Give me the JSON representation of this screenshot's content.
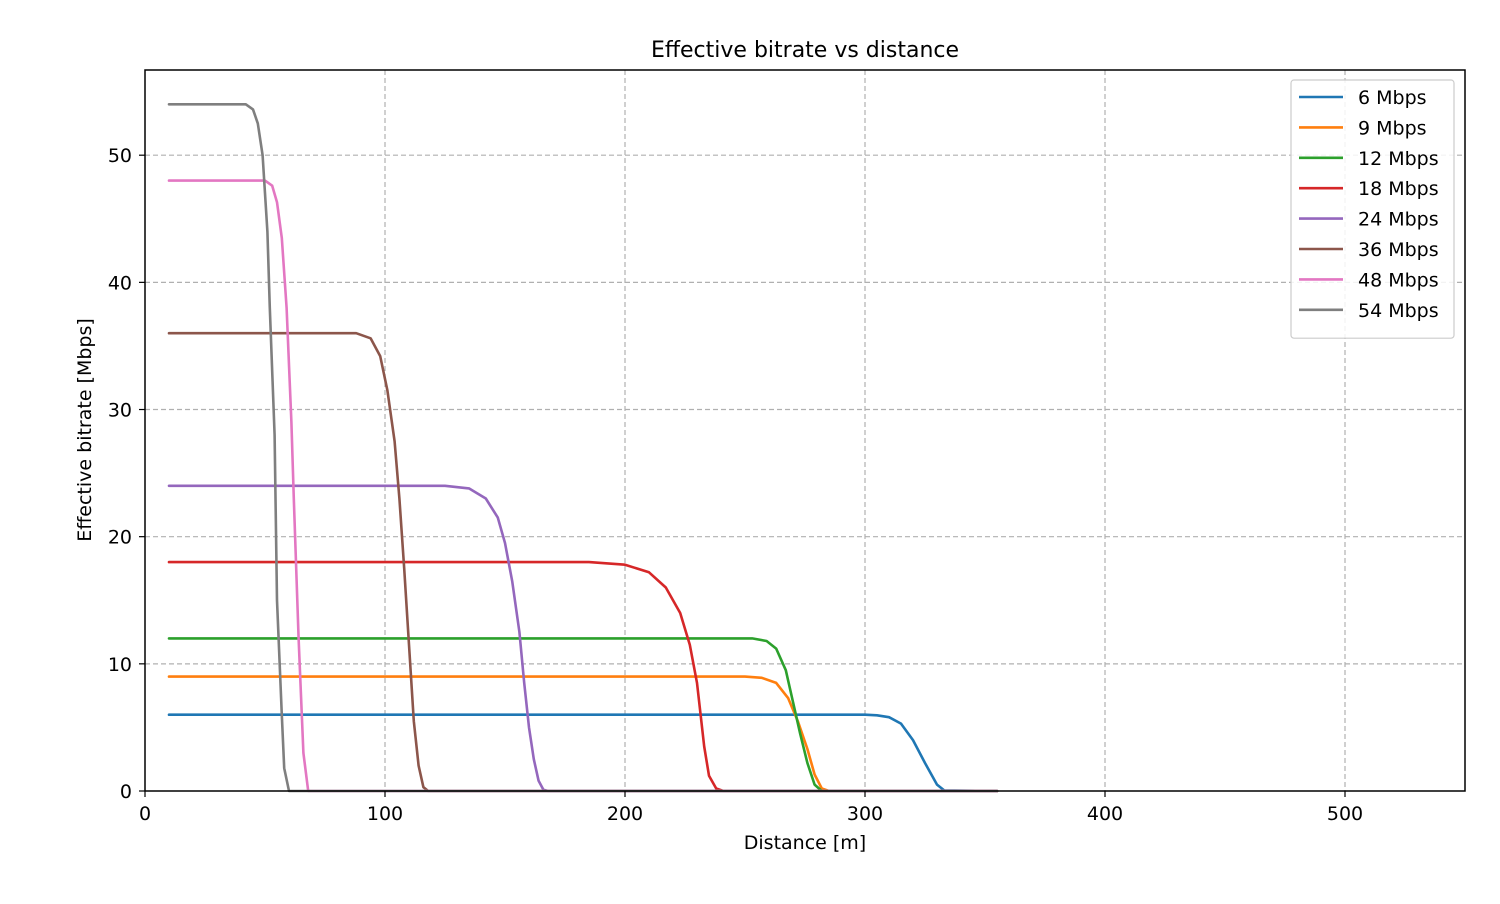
{
  "chart_data": {
    "type": "line",
    "title": "Effective bitrate vs distance",
    "xlabel": "Distance [m]",
    "ylabel": "Effective bitrate [Mbps]",
    "xlim": [
      0,
      550
    ],
    "ylim": [
      0,
      56.7
    ],
    "xticks": [
      0,
      100,
      200,
      300,
      400,
      500
    ],
    "yticks": [
      0,
      10,
      20,
      30,
      40,
      50
    ],
    "grid": true,
    "legend_position": "top-right",
    "series": [
      {
        "name": "6 Mbps",
        "color": "#1f77b4",
        "points": [
          [
            10,
            6
          ],
          [
            300,
            6
          ],
          [
            305,
            5.95
          ],
          [
            310,
            5.8
          ],
          [
            315,
            5.3
          ],
          [
            320,
            4.0
          ],
          [
            325,
            2.2
          ],
          [
            330,
            0.5
          ],
          [
            333,
            0.05
          ],
          [
            355,
            0
          ]
        ]
      },
      {
        "name": "9 Mbps",
        "color": "#ff7f0e",
        "points": [
          [
            10,
            9
          ],
          [
            250,
            9
          ],
          [
            257,
            8.9
          ],
          [
            263,
            8.5
          ],
          [
            268,
            7.3
          ],
          [
            272,
            5.5
          ],
          [
            276,
            3.3
          ],
          [
            279,
            1.3
          ],
          [
            282,
            0.2
          ],
          [
            285,
            0
          ],
          [
            355,
            0
          ]
        ]
      },
      {
        "name": "12 Mbps",
        "color": "#2ca02c",
        "points": [
          [
            10,
            12
          ],
          [
            253,
            12
          ],
          [
            259,
            11.8
          ],
          [
            263,
            11.2
          ],
          [
            267,
            9.5
          ],
          [
            270,
            7.0
          ],
          [
            273,
            4.5
          ],
          [
            276,
            2.2
          ],
          [
            279,
            0.5
          ],
          [
            282,
            0
          ],
          [
            355,
            0
          ]
        ]
      },
      {
        "name": "18 Mbps",
        "color": "#d62728",
        "points": [
          [
            10,
            18
          ],
          [
            185,
            18
          ],
          [
            200,
            17.8
          ],
          [
            210,
            17.2
          ],
          [
            217,
            16.0
          ],
          [
            223,
            14.0
          ],
          [
            227,
            11.5
          ],
          [
            230,
            8.5
          ],
          [
            233,
            3.5
          ],
          [
            235,
            1.2
          ],
          [
            238,
            0.2
          ],
          [
            241,
            0
          ],
          [
            355,
            0
          ]
        ]
      },
      {
        "name": "24 Mbps",
        "color": "#9467bd",
        "points": [
          [
            10,
            24
          ],
          [
            125,
            24
          ],
          [
            135,
            23.8
          ],
          [
            142,
            23.0
          ],
          [
            147,
            21.5
          ],
          [
            150,
            19.5
          ],
          [
            153,
            16.5
          ],
          [
            156,
            12.5
          ],
          [
            158,
            8.5
          ],
          [
            160,
            5.0
          ],
          [
            162,
            2.5
          ],
          [
            164,
            0.8
          ],
          [
            166,
            0.1
          ],
          [
            168,
            0
          ],
          [
            355,
            0
          ]
        ]
      },
      {
        "name": "36 Mbps",
        "color": "#8c564b",
        "points": [
          [
            10,
            36
          ],
          [
            88,
            36
          ],
          [
            94,
            35.6
          ],
          [
            98,
            34.2
          ],
          [
            101,
            31.5
          ],
          [
            104,
            27.5
          ],
          [
            106,
            23.0
          ],
          [
            108,
            17.5
          ],
          [
            110,
            11.5
          ],
          [
            112,
            5.5
          ],
          [
            114,
            2.0
          ],
          [
            116,
            0.3
          ],
          [
            118,
            0
          ],
          [
            355,
            0
          ]
        ]
      },
      {
        "name": "48 Mbps",
        "color": "#e377c2",
        "points": [
          [
            10,
            48
          ],
          [
            50,
            48
          ],
          [
            53,
            47.6
          ],
          [
            55,
            46.3
          ],
          [
            57,
            43.5
          ],
          [
            59,
            38.0
          ],
          [
            61,
            29.0
          ],
          [
            62,
            23.0
          ],
          [
            64,
            12.0
          ],
          [
            66,
            3.0
          ],
          [
            68,
            0
          ],
          [
            355,
            0
          ]
        ]
      },
      {
        "name": "54 Mbps",
        "color": "#7f7f7f",
        "points": [
          [
            10,
            54
          ],
          [
            42,
            54
          ],
          [
            45,
            53.6
          ],
          [
            47,
            52.5
          ],
          [
            49,
            50.0
          ],
          [
            51,
            44.0
          ],
          [
            52,
            38.0
          ],
          [
            54,
            28.0
          ],
          [
            55,
            15.0
          ],
          [
            57,
            6.0
          ],
          [
            58,
            1.8
          ],
          [
            60,
            0
          ],
          [
            355,
            0
          ]
        ]
      }
    ]
  }
}
